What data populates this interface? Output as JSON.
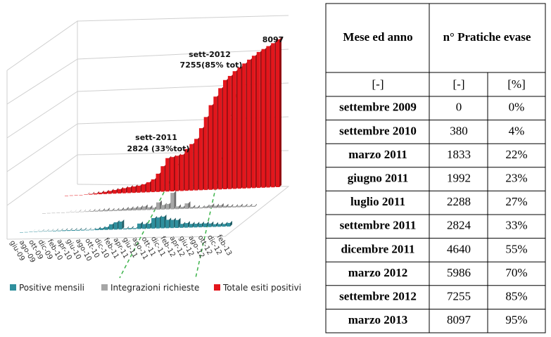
{
  "chart_data": {
    "type": "bar3d",
    "categories": [
      "giu-09",
      null,
      "ago-09",
      null,
      "ott-09",
      null,
      "dic-09",
      null,
      "feb-10",
      null,
      "apr-10",
      null,
      "giu-10",
      null,
      "ago-10",
      null,
      "ott-10",
      null,
      "dic-10",
      null,
      "feb-11",
      null,
      "apr-11",
      null,
      "giu-11",
      null,
      "ago-11",
      null,
      "ott-11",
      null,
      "dic-11",
      null,
      "feb-12",
      null,
      "apr-12",
      null,
      "giu-12",
      null,
      "ago-12",
      null,
      "ott-12",
      null,
      "dic-12",
      null,
      "feb-13"
    ],
    "series": [
      {
        "name": "Positive mensili",
        "color": "#2f8f9d",
        "values": [
          0,
          0,
          5,
          10,
          20,
          20,
          20,
          30,
          30,
          40,
          40,
          40,
          40,
          40,
          30,
          30,
          70,
          100,
          150,
          300,
          400,
          433,
          47,
          60,
          52,
          296,
          262,
          274,
          576,
          600,
          640,
          460,
          450,
          436,
          214,
          250,
          200,
          200,
          200,
          205,
          195,
          150,
          150,
          150,
          197
        ]
      },
      {
        "name": "Integrazioni richieste",
        "color": "#a6a6a6",
        "values": [
          0,
          0,
          0,
          0,
          0,
          10,
          10,
          20,
          20,
          30,
          40,
          50,
          60,
          80,
          60,
          60,
          80,
          100,
          120,
          140,
          160,
          200,
          150,
          120,
          400,
          250,
          300,
          900,
          150,
          120,
          300,
          100,
          80,
          60,
          100,
          150,
          120,
          140,
          100,
          80,
          60,
          80,
          70,
          60,
          50
        ]
      },
      {
        "name": "Totale esiti positivi",
        "color": "#e3161c",
        "values": [
          0,
          0,
          0,
          0,
          20,
          40,
          60,
          90,
          120,
          160,
          200,
          240,
          280,
          320,
          350,
          380,
          450,
          550,
          700,
          1000,
          1400,
          1833,
          1880,
          1940,
          1992,
          2288,
          2550,
          2824,
          3400,
          4000,
          4640,
          5100,
          5550,
          5986,
          6200,
          6450,
          6650,
          6850,
          7050,
          7255,
          7450,
          7600,
          7750,
          7900,
          8097
        ]
      }
    ],
    "annotations": [
      "8097",
      "sett-2012",
      "7255(85% tot)",
      "sett-2011",
      "2824 (33%tot)"
    ]
  },
  "table": {
    "header": [
      "Mese ed anno",
      "n° Pratiche evase"
    ],
    "units": [
      "[-]",
      "[-]",
      "[%]"
    ],
    "rows": [
      [
        "settembre 2009",
        "0",
        "0%"
      ],
      [
        "settembre 2010",
        "380",
        "4%"
      ],
      [
        "marzo 2011",
        "1833",
        "22%"
      ],
      [
        "giugno 2011",
        "1992",
        "23%"
      ],
      [
        "luglio 2011",
        "2288",
        "27%"
      ],
      [
        "settembre 2011",
        "2824",
        "33%"
      ],
      [
        "dicembre 2011",
        "4640",
        "55%"
      ],
      [
        "marzo 2012",
        "5986",
        "70%"
      ],
      [
        "settembre 2012",
        "7255",
        "85%"
      ],
      [
        "marzo 2013",
        "8097",
        "95%"
      ]
    ]
  }
}
